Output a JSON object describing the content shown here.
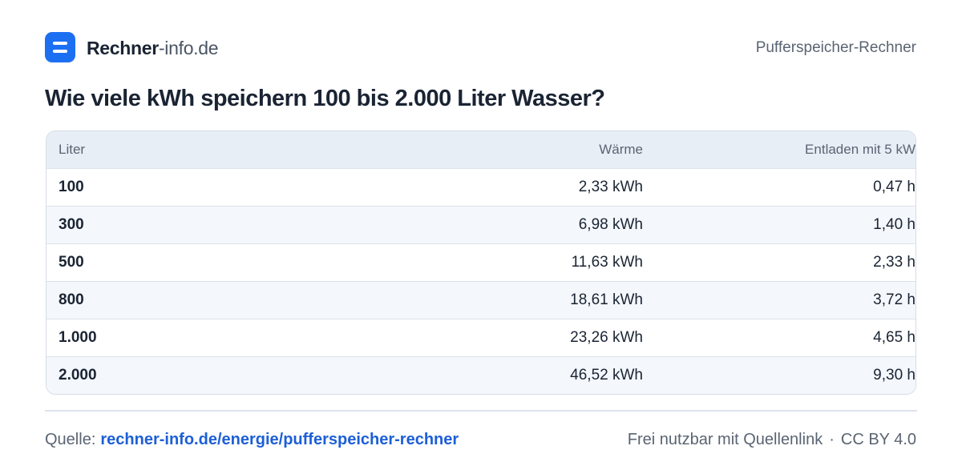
{
  "header": {
    "brand_bold": "Rechner",
    "brand_rest": "-info.de",
    "page_label": "Pufferspeicher-Rechner"
  },
  "title": "Wie viele kWh speichern 100 bis 2.000 Liter Wasser?",
  "table": {
    "columns": [
      "Liter",
      "Wärme",
      "Entladen mit 5 kW"
    ],
    "rows": [
      [
        "100",
        "2,33 kWh",
        "0,47 h"
      ],
      [
        "300",
        "6,98 kWh",
        "1,40 h"
      ],
      [
        "500",
        "11,63 kWh",
        "2,33 h"
      ],
      [
        "800",
        "18,61 kWh",
        "3,72 h"
      ],
      [
        "1.000",
        "23,26 kWh",
        "4,65 h"
      ],
      [
        "2.000",
        "46,52 kWh",
        "9,30 h"
      ]
    ]
  },
  "footer": {
    "source_label": "Quelle:",
    "source_link": "rechner-info.de/energie/pufferspeicher-rechner",
    "license_note": "Frei nutzbar mit Quellenlink",
    "separator": "·",
    "license": "CC BY 4.0"
  }
}
